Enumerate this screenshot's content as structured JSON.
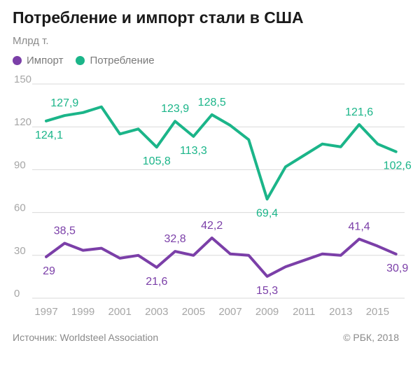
{
  "header": {
    "title": "Потребление и импорт стали в США",
    "unit": "Млрд т."
  },
  "footer": {
    "source": "Источник: Worldsteel Association",
    "copyright": "© РБК, 2018"
  },
  "colors": {
    "import": "#7b3fa8",
    "consumption": "#1bb589",
    "grid": "#d9d9d9",
    "axis_text": "#a6a6a6"
  },
  "chart_data": {
    "type": "line",
    "title": "Потребление и импорт стали в США",
    "ylabel": "Млрд т.",
    "xlabel": "",
    "ylim": [
      0,
      150
    ],
    "yticks": [
      0,
      30,
      60,
      90,
      120,
      150
    ],
    "xticks": [
      "1997",
      "1999",
      "2001",
      "2003",
      "2005",
      "2007",
      "2009",
      "2011",
      "2013",
      "2015"
    ],
    "x": [
      1997,
      1998,
      1999,
      2000,
      2001,
      2002,
      2003,
      2004,
      2005,
      2006,
      2007,
      2008,
      2009,
      2010,
      2011,
      2012,
      2013,
      2014,
      2015,
      2016
    ],
    "legend_position": "top-left",
    "grid": true,
    "series": [
      {
        "name": "Импорт",
        "color": "#7b3fa8",
        "values": [
          29,
          38.5,
          33.5,
          35,
          28,
          30,
          21.6,
          32.8,
          30,
          42.2,
          31,
          30,
          15.3,
          22,
          26.5,
          31,
          30,
          41.4,
          36.5,
          30.9
        ],
        "labels": [
          {
            "x": 1997,
            "text": "29",
            "pos": "below"
          },
          {
            "x": 1998,
            "text": "38,5",
            "pos": "above"
          },
          {
            "x": 2003,
            "text": "21,6",
            "pos": "below"
          },
          {
            "x": 2004,
            "text": "32,8",
            "pos": "above"
          },
          {
            "x": 2006,
            "text": "42,2",
            "pos": "above"
          },
          {
            "x": 2009,
            "text": "15,3",
            "pos": "below"
          },
          {
            "x": 2014,
            "text": "41,4",
            "pos": "above"
          },
          {
            "x": 2016,
            "text": "30,9",
            "pos": "below"
          }
        ]
      },
      {
        "name": "Потребление",
        "color": "#1bb589",
        "values": [
          124.1,
          127.9,
          130,
          134,
          115,
          118.5,
          105.8,
          123.9,
          113.3,
          128.5,
          121,
          111,
          69.4,
          92,
          100,
          108,
          106,
          121.6,
          108,
          102.6
        ],
        "labels": [
          {
            "x": 1997,
            "text": "124,1",
            "pos": "below"
          },
          {
            "x": 1998,
            "text": "127,9",
            "pos": "above"
          },
          {
            "x": 2003,
            "text": "105,8",
            "pos": "below"
          },
          {
            "x": 2004,
            "text": "123,9",
            "pos": "above"
          },
          {
            "x": 2005,
            "text": "113,3",
            "pos": "below"
          },
          {
            "x": 2006,
            "text": "128,5",
            "pos": "above"
          },
          {
            "x": 2009,
            "text": "69,4",
            "pos": "below"
          },
          {
            "x": 2014,
            "text": "121,6",
            "pos": "above"
          },
          {
            "x": 2016,
            "text": "102,6",
            "pos": "below"
          }
        ]
      }
    ]
  }
}
